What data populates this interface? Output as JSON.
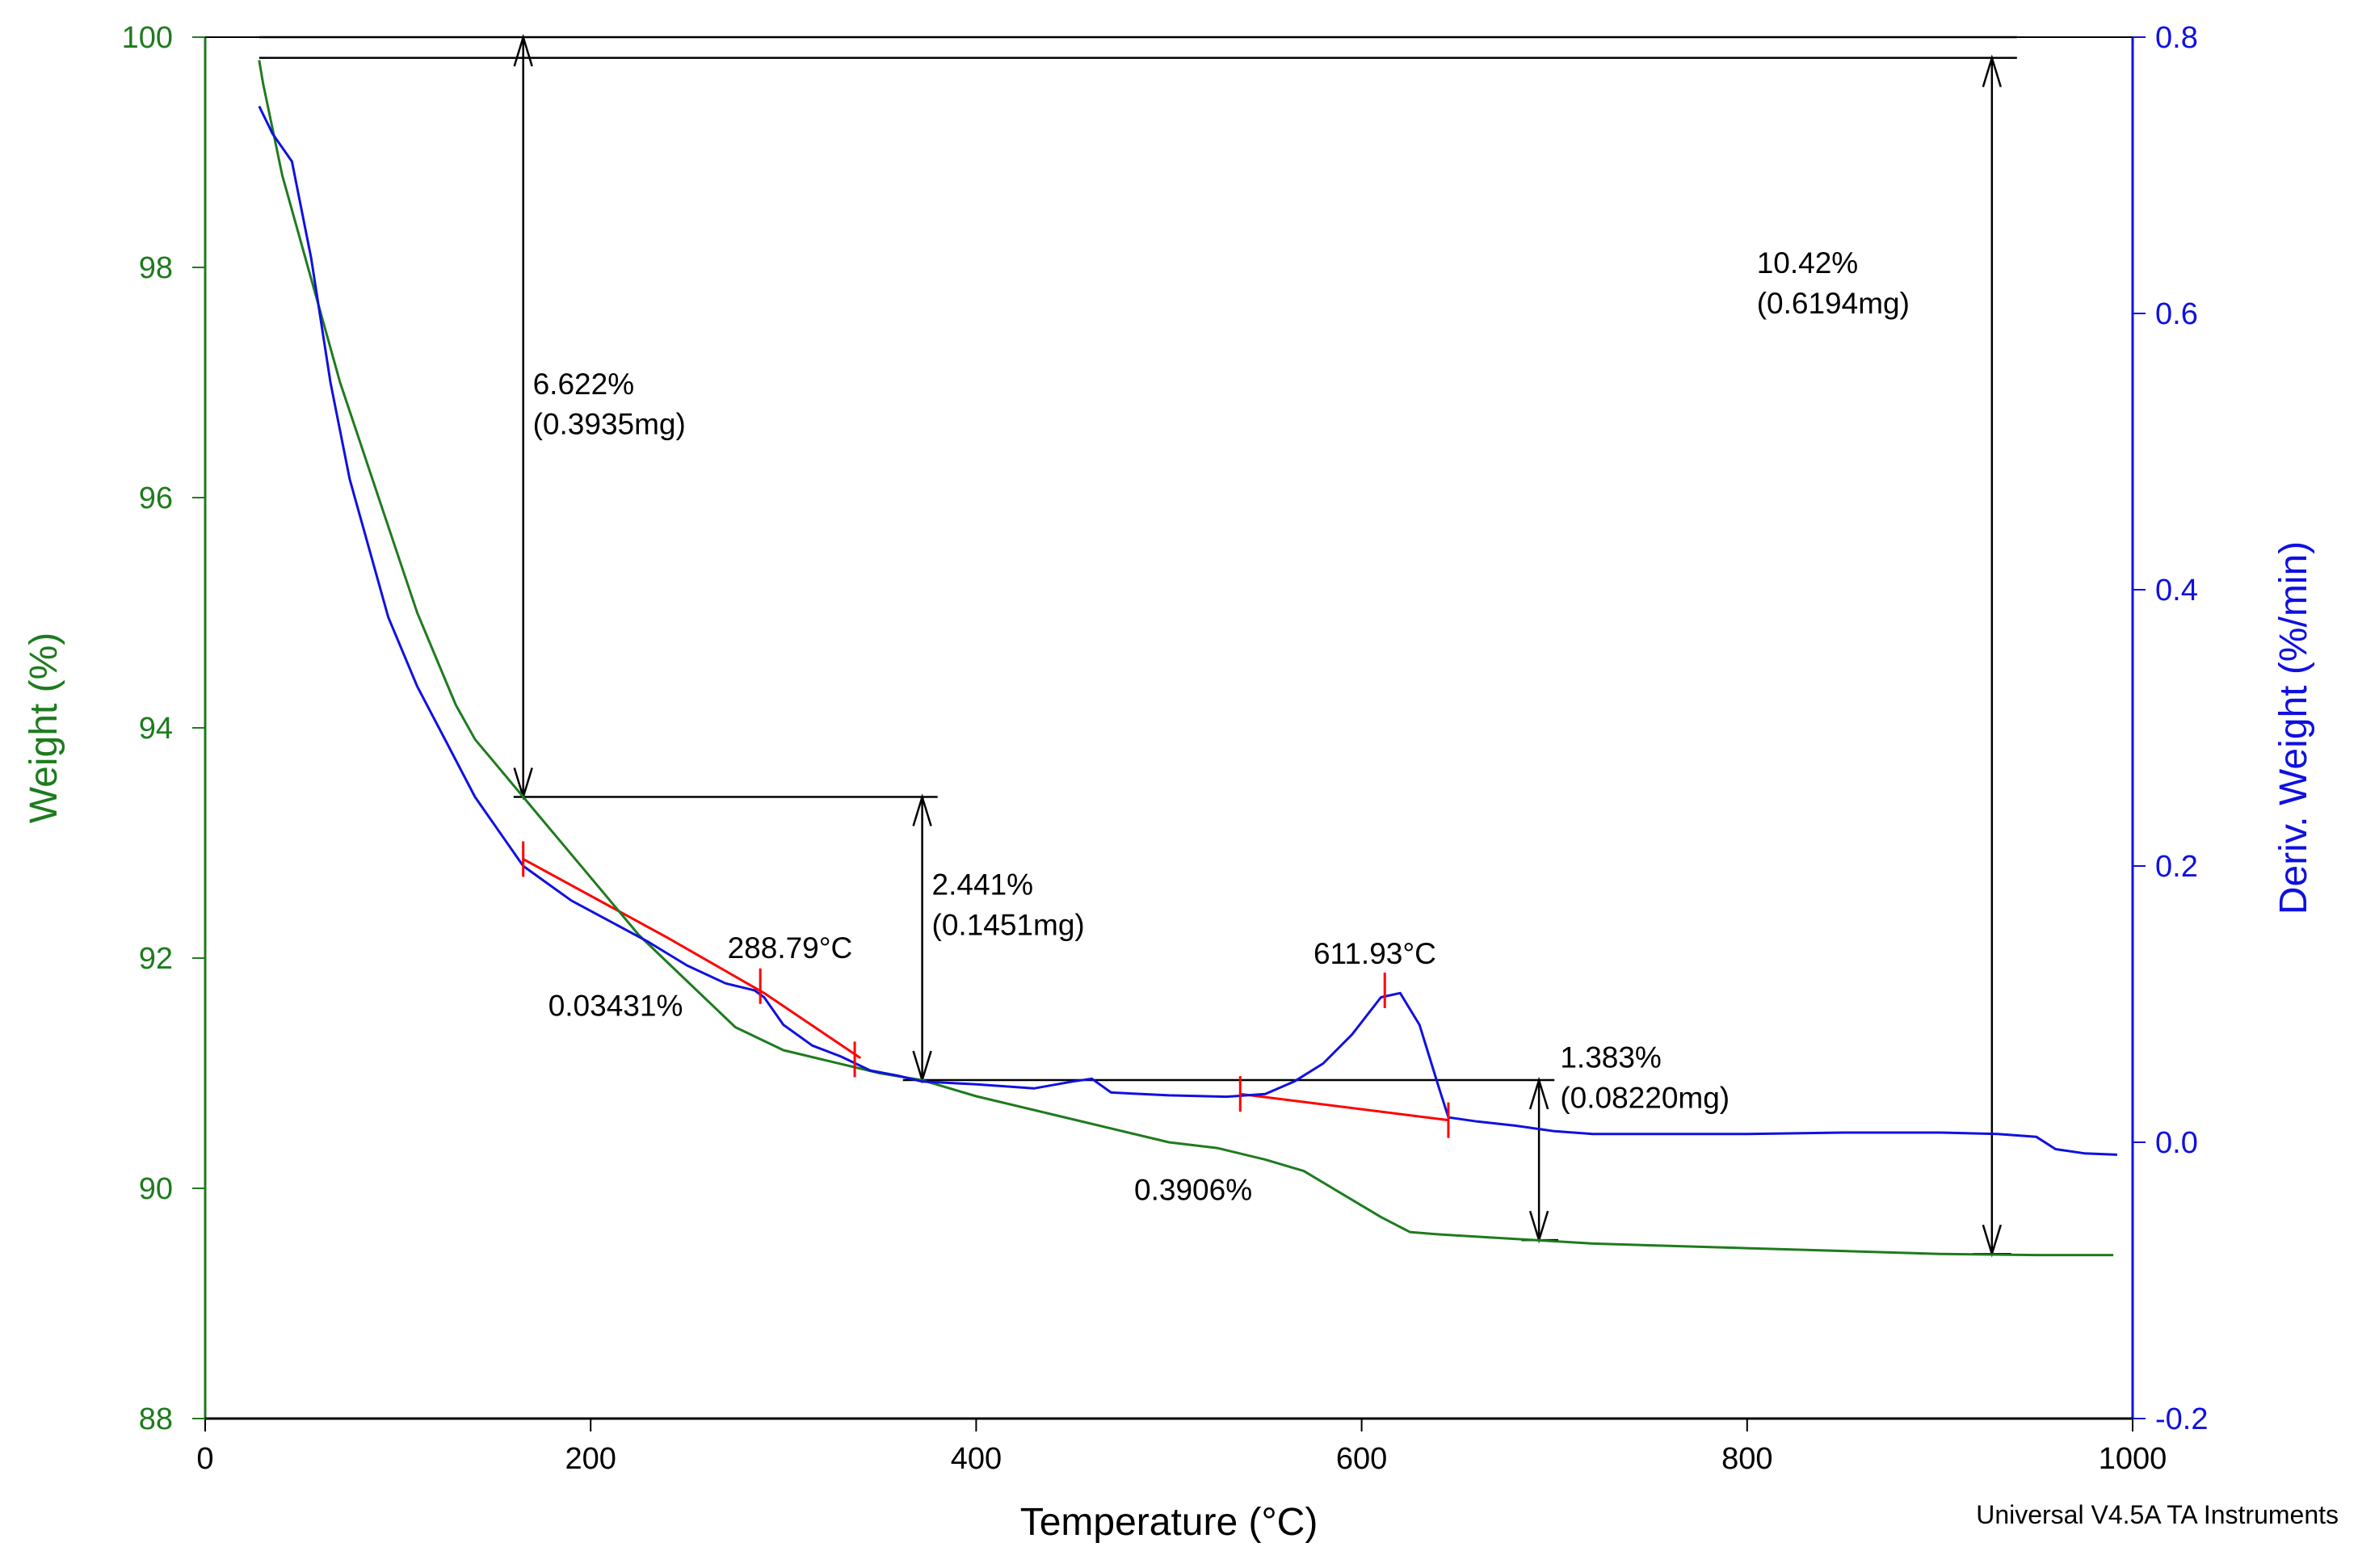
{
  "chart_data": {
    "type": "line",
    "title": "",
    "xlabel": "Temperature (°C)",
    "ylabel": "Weight (%)",
    "y2label": "Deriv. Weight (%/min)",
    "xlim": [
      0,
      1000
    ],
    "ylim": [
      88,
      100
    ],
    "y2lim": [
      -0.2,
      0.8
    ],
    "x_ticks": [
      0,
      200,
      400,
      600,
      800,
      1000
    ],
    "y_ticks": [
      88,
      90,
      92,
      94,
      96,
      98,
      100
    ],
    "y2_ticks": [
      -0.2,
      0.0,
      0.2,
      0.4,
      0.6,
      0.8
    ],
    "x_tick_labels": [
      "0",
      "200",
      "400",
      "600",
      "800",
      "1000"
    ],
    "y_tick_labels": [
      "88",
      "90",
      "92",
      "94",
      "96",
      "98",
      "100"
    ],
    "y2_tick_labels": [
      "-0.2",
      "0.0",
      "0.2",
      "0.4",
      "0.6",
      "0.8"
    ],
    "grid": false,
    "footer": "Universal V4.5A TA Instruments",
    "colors": {
      "weight": "#1e7b1e",
      "deriv": "#1010e0",
      "tangent": "#ff0000",
      "annotation": "#000000"
    },
    "series": [
      {
        "name": "Weight (%)",
        "axis": "left",
        "x": [
          28,
          30,
          40,
          50,
          60,
          70,
          80,
          90,
          100,
          110,
          120,
          130,
          140,
          150,
          165,
          175,
          200,
          225,
          250,
          275,
          300,
          325,
          350,
          372,
          400,
          450,
          500,
          525,
          550,
          570,
          590,
          610,
          625,
          640,
          660,
          690,
          720,
          800,
          900,
          950,
          990
        ],
        "y": [
          99.8,
          99.6,
          98.8,
          98.2,
          97.6,
          97.0,
          96.5,
          96.0,
          95.5,
          95.0,
          94.6,
          94.2,
          93.9,
          93.7,
          93.4,
          93.2,
          92.7,
          92.2,
          91.8,
          91.4,
          91.2,
          91.1,
          91.0,
          90.94,
          90.8,
          90.6,
          90.4,
          90.35,
          90.25,
          90.15,
          89.95,
          89.75,
          89.62,
          89.6,
          89.58,
          89.55,
          89.52,
          89.48,
          89.43,
          89.42,
          89.42
        ]
      },
      {
        "name": "Deriv. Weight (%/min)",
        "axis": "right",
        "x": [
          28,
          35,
          45,
          55,
          65,
          75,
          85,
          95,
          110,
          125,
          140,
          155,
          165,
          175,
          190,
          210,
          230,
          250,
          270,
          285,
          290,
          300,
          315,
          330,
          345,
          360,
          372,
          400,
          430,
          450,
          460,
          470,
          500,
          530,
          550,
          565,
          580,
          595,
          610,
          620,
          630,
          640,
          645,
          660,
          680,
          700,
          720,
          760,
          800,
          850,
          900,
          930,
          950,
          960,
          975,
          992
        ],
        "y": [
          0.75,
          0.73,
          0.71,
          0.64,
          0.55,
          0.48,
          0.43,
          0.38,
          0.33,
          0.29,
          0.25,
          0.22,
          0.2,
          0.19,
          0.175,
          0.16,
          0.145,
          0.128,
          0.115,
          0.11,
          0.105,
          0.085,
          0.07,
          0.062,
          0.052,
          0.048,
          0.044,
          0.042,
          0.039,
          0.044,
          0.046,
          0.036,
          0.034,
          0.033,
          0.035,
          0.044,
          0.057,
          0.078,
          0.105,
          0.108,
          0.085,
          0.04,
          0.018,
          0.015,
          0.012,
          0.008,
          0.006,
          0.006,
          0.006,
          0.007,
          0.007,
          0.006,
          0.004,
          -0.005,
          -0.008,
          -0.009
        ]
      }
    ],
    "tangent_lines": [
      {
        "name": "onset-tangent-1",
        "axis": "right",
        "x": [
          165,
          240,
          290,
          340
        ],
        "y": [
          0.205,
          0.148,
          0.108,
          0.061
        ]
      },
      {
        "name": "onset-tangent-2",
        "axis": "right",
        "x": [
          537,
          645
        ],
        "y": [
          0.035,
          0.016
        ]
      }
    ],
    "tangent_ticks": [
      {
        "name": "tick-165",
        "axis": "right",
        "x": 165,
        "y": 0.205
      },
      {
        "name": "tick-288",
        "axis": "right",
        "x": 288,
        "y": 0.113
      },
      {
        "name": "tick-337",
        "axis": "right",
        "x": 337,
        "y": 0.06
      },
      {
        "name": "tick-537",
        "axis": "right",
        "x": 537,
        "y": 0.035
      },
      {
        "name": "tick-612",
        "axis": "right",
        "x": 612,
        "y": 0.11
      },
      {
        "name": "tick-645",
        "axis": "right",
        "x": 645,
        "y": 0.016
      }
    ],
    "annotations": [
      {
        "name": "label-6622-pct",
        "text": "6.622%",
        "x": 170,
        "y": 96.9
      },
      {
        "name": "label-0-3935mg",
        "text": "(0.3935mg)",
        "x": 170,
        "y": 96.55
      },
      {
        "name": "label-10-42-pct",
        "text": "10.42%",
        "x": 805,
        "y": 97.95
      },
      {
        "name": "label-0-6194mg",
        "text": "(0.6194mg)",
        "x": 805,
        "y": 97.6
      },
      {
        "name": "label-2-441-pct",
        "text": "2.441%",
        "x": 377,
        "y": 92.55
      },
      {
        "name": "label-0-1451mg",
        "text": "(0.1451mg)",
        "x": 377,
        "y": 92.2
      },
      {
        "name": "label-288-79c",
        "text": "288.79°C",
        "x": 271,
        "y": 92.0
      },
      {
        "name": "label-611-93c",
        "text": "611.93°C",
        "x": 575,
        "y": 91.95
      },
      {
        "name": "label-0-03431-pct",
        "text": "0.03431%",
        "x": 178,
        "y": 91.5
      },
      {
        "name": "label-1-383-pct",
        "text": "1.383%",
        "x": 703,
        "y": 91.05
      },
      {
        "name": "label-0-08220mg",
        "text": "(0.08220mg)",
        "x": 703,
        "y": 90.7
      },
      {
        "name": "label-0-3906-pct",
        "text": "0.3906%",
        "x": 482,
        "y": 89.9
      }
    ],
    "step_markers": [
      {
        "name": "step-6622",
        "x": 165,
        "y_top": 100.0,
        "y_bottom": 93.4
      },
      {
        "name": "step-2441",
        "x": 372,
        "y_top": 93.4,
        "y_bottom": 90.94
      },
      {
        "name": "step-1383",
        "x": 692,
        "y_top": 90.94,
        "y_bottom": 89.55
      },
      {
        "name": "step-1042",
        "x": 927,
        "y_top": 99.82,
        "y_bottom": 89.43
      }
    ],
    "step_levels": [
      {
        "name": "level-100",
        "x1": 28,
        "x2": 940,
        "y": 100.0
      },
      {
        "name": "level-99-82",
        "x1": 28,
        "x2": 940,
        "y": 99.82
      },
      {
        "name": "level-93-4",
        "x1": 160,
        "x2": 380,
        "y": 93.4
      },
      {
        "name": "level-90-94",
        "x1": 362,
        "x2": 700,
        "y": 90.94
      },
      {
        "name": "level-89-55",
        "x1": 683,
        "x2": 702,
        "y": 89.55
      },
      {
        "name": "level-89-43",
        "x1": 917,
        "x2": 937,
        "y": 89.43
      }
    ]
  }
}
